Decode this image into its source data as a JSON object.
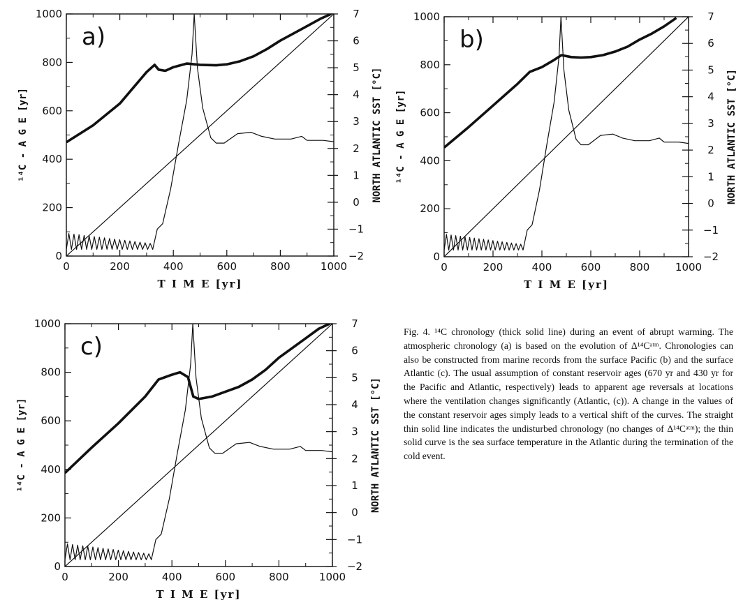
{
  "chart_data": [
    {
      "type": "line",
      "panel_label": "a)",
      "xlabel": "T I M E [yr]",
      "ylabel": "¹⁴C - A G E [yr]",
      "y2label": "NORTH ATLANTIC SST [°C]",
      "xlim": [
        0,
        1000
      ],
      "ylim": [
        0,
        1000
      ],
      "y2lim": [
        -2,
        7
      ],
      "x_ticks": [
        "0",
        "200",
        "400",
        "600",
        "800",
        "1000"
      ],
      "y_ticks": [
        "0",
        "200",
        "400",
        "600",
        "800",
        "1000"
      ],
      "y2_ticks": [
        "−2",
        "−1",
        "0",
        "1",
        "2",
        "3",
        "4",
        "5",
        "6",
        "7"
      ],
      "series": [
        {
          "style": "thick",
          "x": [
            0,
            100,
            200,
            300,
            330,
            345,
            370,
            400,
            450,
            500,
            560,
            600,
            650,
            700,
            750,
            800,
            850,
            900,
            950,
            990
          ],
          "y": [
            470,
            540,
            630,
            760,
            790,
            770,
            765,
            780,
            795,
            790,
            788,
            792,
            805,
            825,
            855,
            890,
            920,
            950,
            980,
            1000
          ]
        },
        {
          "style": "thin",
          "x": [
            0,
            1000
          ],
          "y": [
            0,
            1000
          ]
        },
        {
          "style": "thin",
          "axis": "right",
          "x": [
            0,
            330,
            340,
            360,
            390,
            420,
            450,
            470,
            478,
            490,
            510,
            540,
            560,
            590,
            640,
            690,
            730,
            780,
            840,
            880,
            900,
            960,
            1000
          ],
          "y": [
            -1.6,
            -1.6,
            -1.0,
            -0.8,
            0.5,
            2.2,
            3.8,
            5.5,
            7.0,
            5.0,
            3.5,
            2.4,
            2.2,
            2.2,
            2.55,
            2.6,
            2.45,
            2.35,
            2.35,
            2.45,
            2.3,
            2.3,
            2.25
          ]
        }
      ]
    },
    {
      "type": "line",
      "panel_label": "b)",
      "xlabel": "T I M E [yr]",
      "ylabel": "¹⁴C - A G E [yr]",
      "y2label": "NORTH ATLANTIC SST [°C]",
      "xlim": [
        0,
        1000
      ],
      "ylim": [
        0,
        1000
      ],
      "y2lim": [
        -2,
        7
      ],
      "x_ticks": [
        "0",
        "200",
        "400",
        "600",
        "800",
        "1000"
      ],
      "y_ticks": [
        "0",
        "200",
        "400",
        "600",
        "800",
        "1000"
      ],
      "y2_ticks": [
        "−2",
        "−1",
        "0",
        "1",
        "2",
        "3",
        "4",
        "5",
        "6",
        "7"
      ],
      "series": [
        {
          "style": "thick",
          "x": [
            0,
            100,
            200,
            300,
            350,
            400,
            450,
            480,
            520,
            560,
            600,
            650,
            700,
            750,
            800,
            850,
            900,
            950
          ],
          "y": [
            455,
            540,
            630,
            720,
            770,
            790,
            820,
            840,
            832,
            830,
            832,
            840,
            855,
            875,
            905,
            930,
            960,
            995
          ]
        },
        {
          "style": "thin",
          "x": [
            0,
            1000
          ],
          "y": [
            0,
            1000
          ]
        },
        {
          "style": "thin",
          "axis": "right",
          "x": [
            0,
            330,
            340,
            360,
            390,
            420,
            450,
            470,
            478,
            490,
            510,
            540,
            560,
            590,
            640,
            690,
            730,
            780,
            840,
            880,
            900,
            960,
            1000
          ],
          "y": [
            -1.6,
            -1.6,
            -1.0,
            -0.8,
            0.5,
            2.2,
            3.8,
            5.5,
            7.0,
            5.0,
            3.5,
            2.4,
            2.2,
            2.2,
            2.55,
            2.6,
            2.45,
            2.35,
            2.35,
            2.45,
            2.3,
            2.3,
            2.25
          ]
        }
      ]
    },
    {
      "type": "line",
      "panel_label": "c)",
      "xlabel": "T I M E [yr]",
      "ylabel": "¹⁴C - A G E [yr]",
      "y2label": "NORTH ATLANTIC SST [°C]",
      "xlim": [
        0,
        1000
      ],
      "ylim": [
        0,
        1000
      ],
      "y2lim": [
        -2,
        7
      ],
      "x_ticks": [
        "0",
        "200",
        "400",
        "600",
        "800",
        "1000"
      ],
      "y_ticks": [
        "0",
        "200",
        "400",
        "600",
        "800",
        "1000"
      ],
      "y2_ticks": [
        "−2",
        "−1",
        "0",
        "1",
        "2",
        "3",
        "4",
        "5",
        "6",
        "7"
      ],
      "series": [
        {
          "style": "thick",
          "x": [
            0,
            100,
            200,
            300,
            350,
            400,
            430,
            460,
            480,
            500,
            550,
            600,
            650,
            700,
            750,
            800,
            850,
            900,
            950,
            990
          ],
          "y": [
            385,
            490,
            590,
            700,
            770,
            790,
            800,
            780,
            700,
            690,
            700,
            720,
            740,
            770,
            810,
            860,
            900,
            940,
            980,
            1000
          ]
        },
        {
          "style": "thin",
          "x": [
            0,
            1000
          ],
          "y": [
            0,
            1000
          ]
        },
        {
          "style": "thin",
          "axis": "right",
          "x": [
            0,
            330,
            340,
            360,
            390,
            420,
            450,
            470,
            478,
            490,
            510,
            540,
            560,
            590,
            640,
            690,
            730,
            780,
            840,
            880,
            900,
            960,
            1000
          ],
          "y": [
            -1.6,
            -1.6,
            -1.0,
            -0.8,
            0.5,
            2.2,
            3.8,
            5.5,
            7.0,
            5.0,
            3.5,
            2.4,
            2.2,
            2.2,
            2.55,
            2.6,
            2.45,
            2.35,
            2.35,
            2.45,
            2.3,
            2.3,
            2.25
          ]
        }
      ]
    }
  ],
  "caption": "Fig. 4. ¹⁴C chronology (thick solid line) during an event of abrupt warming. The atmospheric chronology (a) is based on the evolution of Δ¹⁴Cᵃᵗᵐ. Chronologies can also be constructed from marine records from the surface Pacific (b) and the surface Atlantic (c). The usual assumption of constant reservoir ages (670 yr and 430 yr for the Pacific and Atlantic, respectively) leads to apparent age reversals at locations where the ventilation changes significantly (Atlantic, (c)). A change in the values of the constant reservoir ages simply leads to a vertical shift of the curves. The straight thin solid line indicates the undisturbed chronology (no changes of Δ¹⁴Cᵃᵗᵐ); the thin solid curve is the sea surface temperature in the Atlantic during the termination of the cold event."
}
